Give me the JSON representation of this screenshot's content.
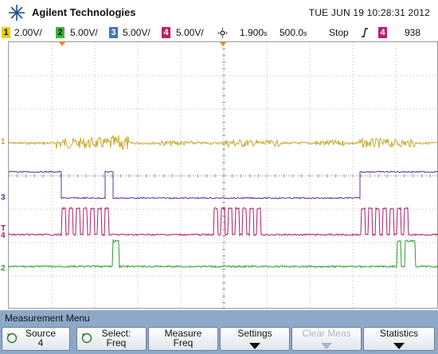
{
  "header": {
    "brand": "Agilent Technologies",
    "datetime": "TUE JUN 19 10:28:31 2012"
  },
  "status": {
    "ch1": {
      "num": "1",
      "scale": "2.00V/",
      "color": "#e8d200"
    },
    "ch2": {
      "num": "2",
      "scale": "5.00V/",
      "color": "#3fb13f"
    },
    "ch3": {
      "num": "3",
      "scale": "5.00V/",
      "color": "#3f73b8"
    },
    "ch4": {
      "num": "4",
      "scale": "5.00V/",
      "color": "#c21c6b"
    },
    "delay": "1.900",
    "delay_unit": "s",
    "timebase": "500.0",
    "timebase_unit": "s",
    "run_state": "Stop",
    "trig_source": "4",
    "trig_level": "938"
  },
  "markers": {
    "ch1": "1",
    "ch3": "3",
    "ch4": "4",
    "ch2": "2",
    "trig_t": "T"
  },
  "menu": {
    "title": "Measurement Menu",
    "keys": [
      {
        "l1": "Source",
        "l2": "4",
        "icon": "rotary-knob-icon",
        "arrow": false,
        "disabled": false
      },
      {
        "l1": "Select:",
        "l2": "Freq",
        "icon": "rotary-knob-icon",
        "arrow": false,
        "disabled": false
      },
      {
        "l1": "Measure",
        "l2": "Freq",
        "icon": "",
        "arrow": false,
        "disabled": false
      },
      {
        "l1": "Settings",
        "l2": "",
        "icon": "",
        "arrow": true,
        "disabled": false
      },
      {
        "l1": "Clear Meas",
        "l2": "",
        "icon": "",
        "arrow": true,
        "disabled": true
      },
      {
        "l1": "Statistics",
        "l2": "",
        "icon": "",
        "arrow": true,
        "disabled": false
      }
    ]
  },
  "colors": {
    "ch1_trace": "#c8a92a",
    "ch3_trace": "#6a2da3",
    "ch4_trace": "#b31b6b",
    "ch2_trace": "#2e9a2e",
    "menu_bg": "#8da9c9",
    "grid": "#b8b8b8",
    "trigger_marker": "#f08c00"
  }
}
